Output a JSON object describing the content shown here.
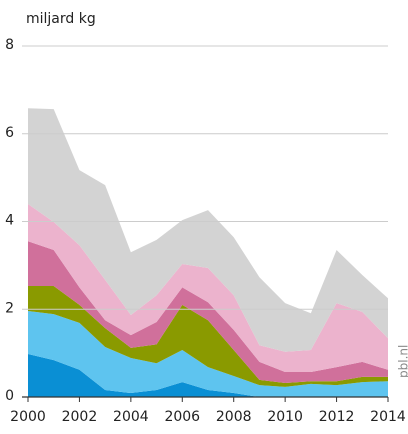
{
  "chart_data": {
    "type": "stacked_area",
    "y_label": "miljard kg",
    "watermark": "pbl.nl",
    "x": [
      2000,
      2001,
      2002,
      2003,
      2004,
      2005,
      2006,
      2007,
      2008,
      2009,
      2010,
      2011,
      2012,
      2013,
      2014
    ],
    "xlim": [
      2000,
      2014
    ],
    "xticks": [
      2000,
      2002,
      2004,
      2006,
      2008,
      2010,
      2012,
      2014
    ],
    "ylim": [
      0,
      8
    ],
    "yticks": [
      0,
      2,
      4,
      6,
      8
    ],
    "grid": true,
    "series": [
      {
        "color": "#0a8fd4",
        "values": [
          0.98,
          0.84,
          0.62,
          0.16,
          0.09,
          0.16,
          0.34,
          0.16,
          0.09,
          0,
          0,
          0,
          0,
          0,
          0
        ]
      },
      {
        "color": "#5ec4ef",
        "values": [
          0.98,
          1.05,
          1.07,
          0.98,
          0.8,
          0.61,
          0.73,
          0.52,
          0.39,
          0.27,
          0.23,
          0.3,
          0.27,
          0.34,
          0.36
        ]
      },
      {
        "color": "#8a9a00",
        "values": [
          0.57,
          0.64,
          0.41,
          0.43,
          0.23,
          0.43,
          1.03,
          1.07,
          0.59,
          0.12,
          0.09,
          0.06,
          0.09,
          0.12,
          0.1
        ]
      },
      {
        "color": "#d0709b",
        "values": [
          1.02,
          0.82,
          0.4,
          0.18,
          0.29,
          0.51,
          0.4,
          0.41,
          0.46,
          0.41,
          0.25,
          0.21,
          0.32,
          0.34,
          0.16
        ]
      },
      {
        "color": "#ecb3cd",
        "values": [
          0.85,
          0.64,
          0.96,
          0.92,
          0.46,
          0.61,
          0.53,
          0.78,
          0.79,
          0.38,
          0.46,
          0.5,
          1.46,
          1.14,
          0.72
        ]
      },
      {
        "color": "#d3d3d3",
        "values": [
          2.18,
          2.57,
          1.71,
          2.16,
          1.43,
          1.26,
          1.0,
          1.32,
          1.32,
          1.55,
          1.11,
          0.84,
          1.21,
          0.84,
          0.91
        ]
      }
    ]
  }
}
